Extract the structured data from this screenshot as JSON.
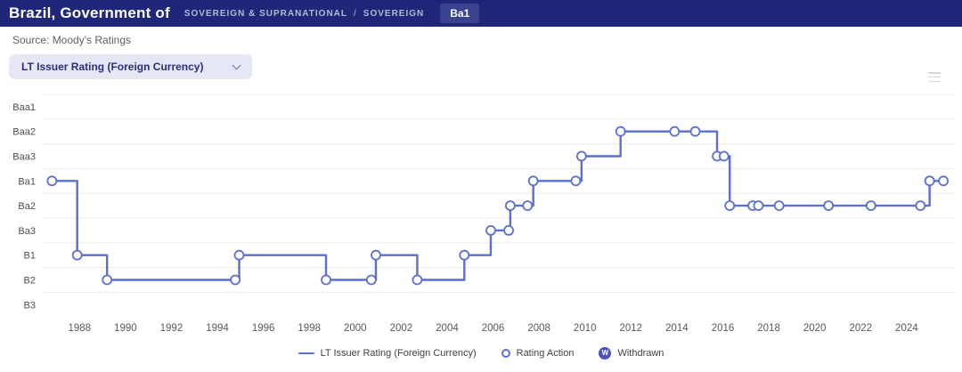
{
  "header": {
    "title": "Brazil, Government of",
    "breadcrumb": {
      "sector": "SOVEREIGN & SUPRANATIONAL",
      "separator": "/",
      "subsector": "SOVEREIGN"
    },
    "rating_badge": "Ba1"
  },
  "source": "Source: Moody's Ratings",
  "rating_selector": {
    "value": "LT Issuer Rating (Foreign Currency)"
  },
  "chart_data": {
    "type": "line",
    "subtype": "step",
    "title": "",
    "xlabel": "",
    "ylabel": "",
    "grid": true,
    "legend_position": "bottom-center",
    "y_categories": [
      "Baa1",
      "Baa2",
      "Baa3",
      "Ba1",
      "Ba2",
      "Ba3",
      "B1",
      "B2",
      "B3"
    ],
    "x_ticks": [
      1988,
      1990,
      1992,
      1994,
      1996,
      1998,
      2000,
      2002,
      2004,
      2006,
      2008,
      2010,
      2012,
      2014,
      2016,
      2018,
      2020,
      2022,
      2024
    ],
    "x_range": [
      1986.4,
      2026.1
    ],
    "series": [
      {
        "name": "LT Issuer Rating (Foreign Currency)",
        "marker": "circle-open",
        "points": [
          {
            "year": 1986.8,
            "rating": "Ba1"
          },
          {
            "year": 1987.9,
            "rating": "B1"
          },
          {
            "year": 1989.2,
            "rating": "B2"
          },
          {
            "year": 1994.78,
            "rating": "B2"
          },
          {
            "year": 1994.95,
            "rating": "B1"
          },
          {
            "year": 1998.73,
            "rating": "B2"
          },
          {
            "year": 2000.7,
            "rating": "B2"
          },
          {
            "year": 2000.9,
            "rating": "B1"
          },
          {
            "year": 2002.7,
            "rating": "B2"
          },
          {
            "year": 2004.75,
            "rating": "B1"
          },
          {
            "year": 2005.9,
            "rating": "Ba3"
          },
          {
            "year": 2006.68,
            "rating": "Ba3"
          },
          {
            "year": 2006.75,
            "rating": "Ba2"
          },
          {
            "year": 2007.5,
            "rating": "Ba2"
          },
          {
            "year": 2007.75,
            "rating": "Ba1"
          },
          {
            "year": 2009.6,
            "rating": "Ba1"
          },
          {
            "year": 2009.85,
            "rating": "Baa3"
          },
          {
            "year": 2011.55,
            "rating": "Baa2"
          },
          {
            "year": 2013.9,
            "rating": "Baa2"
          },
          {
            "year": 2014.8,
            "rating": "Baa2"
          },
          {
            "year": 2015.75,
            "rating": "Baa3"
          },
          {
            "year": 2016.05,
            "rating": "Baa3"
          },
          {
            "year": 2016.3,
            "rating": "Ba2"
          },
          {
            "year": 2017.3,
            "rating": "Ba2"
          },
          {
            "year": 2017.55,
            "rating": "Ba2"
          },
          {
            "year": 2018.45,
            "rating": "Ba2"
          },
          {
            "year": 2020.6,
            "rating": "Ba2"
          },
          {
            "year": 2022.45,
            "rating": "Ba2"
          },
          {
            "year": 2024.6,
            "rating": "Ba2"
          },
          {
            "year": 2025.0,
            "rating": "Ba1"
          },
          {
            "year": 2025.6,
            "rating": "Ba1"
          }
        ]
      }
    ],
    "legend": [
      {
        "type": "line",
        "label": "LT Issuer Rating (Foreign Currency)"
      },
      {
        "type": "circle-open",
        "label": "Rating Action"
      },
      {
        "type": "withdrawn",
        "label": "Withdrawn",
        "glyph": "W"
      }
    ]
  },
  "colors": {
    "header_bg": "#1f2878",
    "badge_bg": "#3a4390",
    "accent_line": "#5b6fd2",
    "withdrawn_fill": "#4c54b9",
    "grid": "#ebebf0",
    "axis_text": "#55585d"
  }
}
